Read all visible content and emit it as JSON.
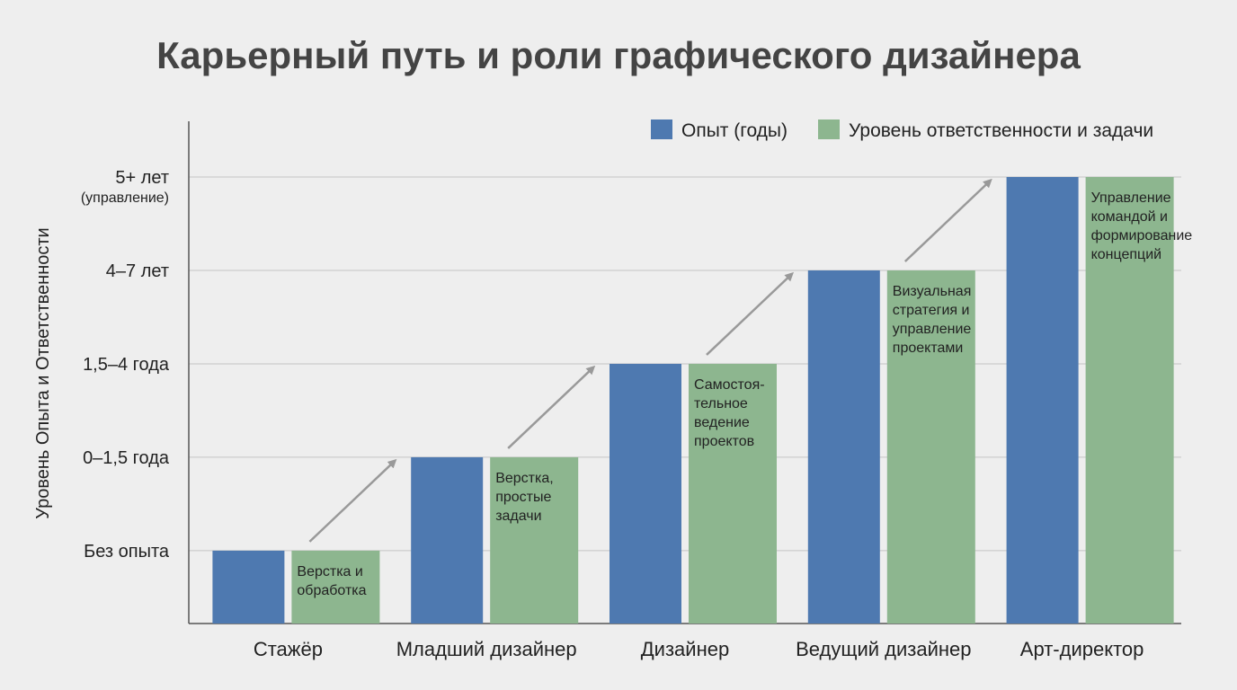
{
  "chart_data": {
    "type": "bar",
    "title": "Карьерный путь и роли графического дизайнера",
    "ylabel": "Уровень Опыта и Ответственности",
    "xlabel": "",
    "y_ticks": [
      {
        "value": 1,
        "label": "Без опыта",
        "sub": ""
      },
      {
        "value": 2,
        "label": "0–1,5 года",
        "sub": ""
      },
      {
        "value": 3,
        "label": "1,5–4 года",
        "sub": ""
      },
      {
        "value": 4,
        "label": "4–7 лет",
        "sub": ""
      },
      {
        "value": 5,
        "label": "5+ лет",
        "sub": "(управление)"
      }
    ],
    "ylim": [
      0.22,
      5
    ],
    "categories": [
      "Стажёр",
      "Младший дизайнер",
      "Дизайнер",
      "Ведущий дизайнер",
      "Арт-директор"
    ],
    "series": [
      {
        "name": "Опыт (годы)",
        "color": "#4e79b0",
        "values": [
          1,
          2,
          3,
          4,
          5
        ]
      },
      {
        "name": "Уровень ответственности и задачи",
        "color": "#8db68f",
        "values": [
          1,
          2,
          3,
          4,
          5
        ]
      }
    ],
    "bar_labels": [
      [
        "Верстка и",
        "обработка"
      ],
      [
        "Верстка,",
        "простые",
        "задачи"
      ],
      [
        "Самостоя-",
        "тельное",
        "ведение",
        "проектов"
      ],
      [
        "Визуальная",
        "стратегия и",
        "управление",
        "проектами"
      ],
      [
        "Управление",
        "командой и",
        "формирование",
        "концепций"
      ]
    ],
    "grid": true,
    "legend": "top-right",
    "annotations": "arrows between consecutive roles"
  }
}
